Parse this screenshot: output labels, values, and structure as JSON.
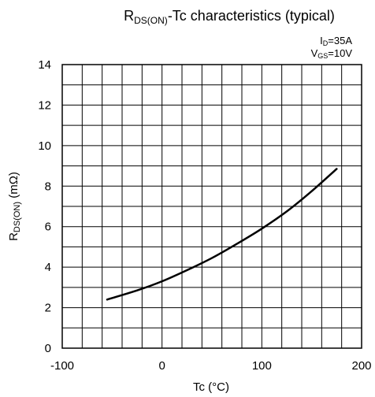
{
  "chart_data": {
    "type": "line",
    "title_main": "R",
    "title_sub": "DS(ON)",
    "title_rest": "-Tc characteristics (typical)",
    "conditions": {
      "line1_main": "I",
      "line1_sub": "D",
      "line1_rest": "=35A",
      "line2_main": "V",
      "line2_sub": "GS",
      "line2_rest": "=10V"
    },
    "xlabel": "Tc (°C)",
    "ylabel_main": "R",
    "ylabel_sub": "DS(ON)",
    "ylabel_rest": " (mΩ)",
    "xlim": [
      -100,
      200
    ],
    "ylim": [
      0,
      14
    ],
    "x_ticks": [
      -100,
      0,
      100,
      200
    ],
    "y_ticks": [
      0,
      2,
      4,
      6,
      8,
      10,
      12,
      14
    ],
    "x_minor_step": 20,
    "y_minor_step": 1,
    "grid": true,
    "series": [
      {
        "x": [
          -55,
          -25,
          0,
          25,
          50,
          75,
          100,
          125,
          150,
          175
        ],
        "values": [
          2.4,
          2.85,
          3.3,
          3.85,
          4.45,
          5.15,
          5.9,
          6.75,
          7.75,
          8.85
        ]
      }
    ]
  }
}
